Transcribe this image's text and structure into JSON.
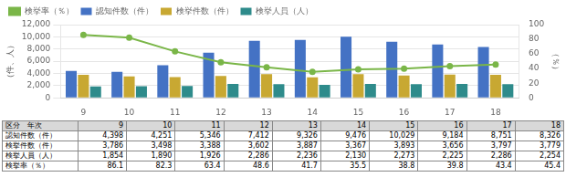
{
  "chart_data": {
    "type": "bar",
    "categories": [
      "9",
      "10",
      "11",
      "12",
      "13",
      "14",
      "15",
      "16",
      "17",
      "18"
    ],
    "series": [
      {
        "name": "認知件数（件）",
        "color": "#4472c4",
        "values": [
          4398,
          4251,
          5346,
          7412,
          9326,
          9476,
          10029,
          9184,
          8751,
          8326
        ]
      },
      {
        "name": "検挙件数（件）",
        "color": "#c8a832",
        "values": [
          3786,
          3498,
          3388,
          3602,
          3887,
          3367,
          3893,
          3656,
          3797,
          3779
        ]
      },
      {
        "name": "検挙人員（人）",
        "color": "#2e8b8b",
        "values": [
          1854,
          1890,
          1926,
          2286,
          2236,
          2130,
          2273,
          2225,
          2286,
          2254
        ]
      },
      {
        "name": "検挙率（％）",
        "type": "line",
        "axis": "y2",
        "color": "#7ab648",
        "marker": "o",
        "values": [
          86.1,
          82.3,
          63.4,
          48.6,
          41.7,
          35.5,
          38.8,
          39.8,
          43.4,
          45.4
        ]
      }
    ],
    "ylabel": "（件、人）",
    "y2label": "（％）",
    "ylim": [
      0,
      12000
    ],
    "yticks": [
      0,
      {
        "value": 2000,
        "label": "2,000"
      },
      {
        "value": 4000,
        "label": "4,000"
      },
      {
        "value": 6000,
        "label": "6,000"
      },
      {
        "value": 8000,
        "label": "8,000"
      },
      {
        "value": 10000,
        "label": "10,000"
      },
      {
        "value": 12000,
        "label": "12,000"
      }
    ],
    "y2lim": [
      0,
      100
    ],
    "y2ticks": [
      0,
      20,
      40,
      60,
      80,
      100
    ],
    "grid": true,
    "legend": "upper left",
    "table": [
      [
        "区分　年次",
        "9",
        "10",
        "11",
        "12",
        "13",
        "14",
        "15",
        "16",
        "17",
        "18"
      ],
      [
        "認知件数（件）",
        "4,398",
        "4,251",
        "5,346",
        "7,412",
        "9,326",
        "9,476",
        "10,029",
        "9,184",
        "8,751",
        "8,326"
      ],
      [
        "検挙件数（件）",
        "3,786",
        "3,498",
        "3,388",
        "3,602",
        "3,887",
        "3,367",
        "3,893",
        "3,656",
        "3,797",
        "3,779"
      ],
      [
        "検挙人員（人）",
        "1,854",
        "1,890",
        "1,926",
        "2,286",
        "2,236",
        "2,130",
        "2,273",
        "2,225",
        "2,286",
        "2,254"
      ],
      [
        "検挙率（％）",
        "86.1",
        "82.3",
        "63.4",
        "48.6",
        "41.7",
        "35.5",
        "38.8",
        "39.8",
        "43.4",
        "45.4"
      ]
    ]
  }
}
